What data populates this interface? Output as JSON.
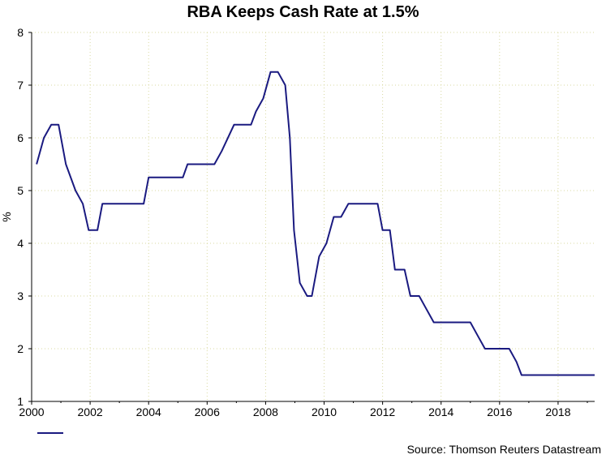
{
  "chart_data": {
    "type": "line",
    "title": "RBA Keeps Cash Rate at 1.5%",
    "xlabel": "",
    "ylabel": "%",
    "xlim": [
      2000,
      2019.25
    ],
    "ylim": [
      1,
      8
    ],
    "x_ticks": [
      2000,
      2002,
      2004,
      2006,
      2008,
      2010,
      2012,
      2014,
      2016,
      2018
    ],
    "y_ticks": [
      1,
      2,
      3,
      4,
      5,
      6,
      7,
      8
    ],
    "grid": true,
    "legend": "bottom-left",
    "series": [
      {
        "name": "",
        "color": "#1a1a80",
        "points": [
          [
            2000.17,
            5.5
          ],
          [
            2000.42,
            6.0
          ],
          [
            2000.67,
            6.25
          ],
          [
            2000.92,
            6.25
          ],
          [
            2001.17,
            5.5
          ],
          [
            2001.5,
            5.0
          ],
          [
            2001.75,
            4.75
          ],
          [
            2001.95,
            4.25
          ],
          [
            2002.25,
            4.25
          ],
          [
            2002.42,
            4.75
          ],
          [
            2003.83,
            4.75
          ],
          [
            2004.0,
            5.25
          ],
          [
            2005.17,
            5.25
          ],
          [
            2005.33,
            5.5
          ],
          [
            2006.25,
            5.5
          ],
          [
            2006.5,
            5.75
          ],
          [
            2006.92,
            6.25
          ],
          [
            2007.5,
            6.25
          ],
          [
            2007.67,
            6.5
          ],
          [
            2007.92,
            6.75
          ],
          [
            2008.17,
            7.25
          ],
          [
            2008.42,
            7.25
          ],
          [
            2008.67,
            7.0
          ],
          [
            2008.83,
            6.0
          ],
          [
            2008.97,
            4.25
          ],
          [
            2009.17,
            3.25
          ],
          [
            2009.42,
            3.0
          ],
          [
            2009.58,
            3.0
          ],
          [
            2009.83,
            3.75
          ],
          [
            2010.08,
            4.0
          ],
          [
            2010.33,
            4.5
          ],
          [
            2010.58,
            4.5
          ],
          [
            2010.83,
            4.75
          ],
          [
            2011.83,
            4.75
          ],
          [
            2012.0,
            4.25
          ],
          [
            2012.25,
            4.25
          ],
          [
            2012.42,
            3.5
          ],
          [
            2012.75,
            3.5
          ],
          [
            2012.95,
            3.0
          ],
          [
            2013.25,
            3.0
          ],
          [
            2013.5,
            2.75
          ],
          [
            2013.75,
            2.5
          ],
          [
            2014.0,
            2.5
          ],
          [
            2015.0,
            2.5
          ],
          [
            2015.25,
            2.25
          ],
          [
            2015.5,
            2.0
          ],
          [
            2016.33,
            2.0
          ],
          [
            2016.58,
            1.75
          ],
          [
            2016.75,
            1.5
          ],
          [
            2019.25,
            1.5
          ]
        ]
      }
    ],
    "source": "Source: Thomson Reuters Datastream"
  }
}
